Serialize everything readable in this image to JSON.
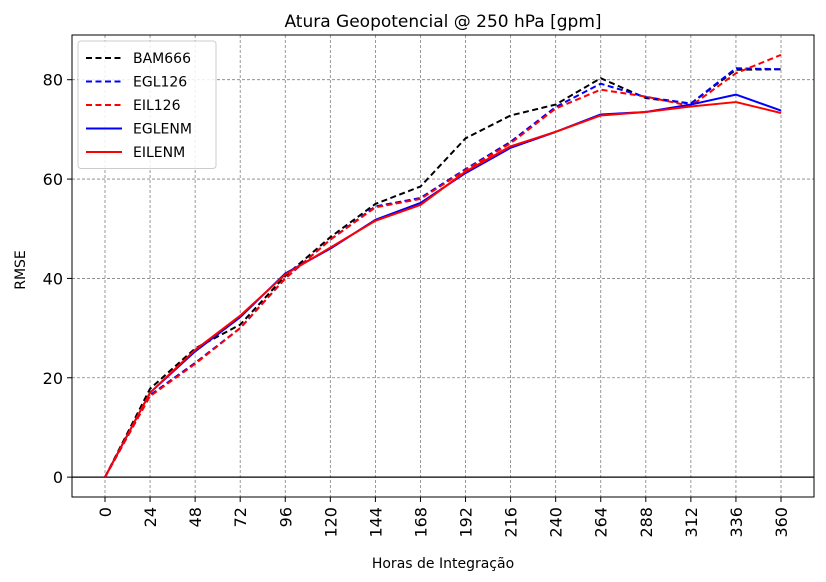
{
  "chart_data": {
    "type": "line",
    "title": "Atura Geopotencial @ 250 hPa [gpm]",
    "xlabel": "Horas de Integração",
    "ylabel": "RMSE",
    "x": [
      0,
      24,
      48,
      72,
      96,
      120,
      144,
      168,
      192,
      216,
      240,
      264,
      288,
      312,
      336,
      360
    ],
    "xticks": [
      "0",
      "24",
      "48",
      "72",
      "96",
      "120",
      "144",
      "168",
      "192",
      "216",
      "240",
      "264",
      "288",
      "312",
      "336",
      "360"
    ],
    "yticks": [
      "0",
      "20",
      "40",
      "60",
      "80"
    ],
    "ylim": [
      -4,
      89
    ],
    "grid": true,
    "legend_position": "top-left",
    "series": [
      {
        "name": "BAM666",
        "color": "#000000",
        "dash": true,
        "values": [
          0,
          17.8,
          25.9,
          30.7,
          40.5,
          48.3,
          55.0,
          58.5,
          68.2,
          72.8,
          75.0,
          80.3,
          76.3,
          75.2,
          82.0,
          82.1
        ]
      },
      {
        "name": "EGL126",
        "color": "#0000ff",
        "dash": true,
        "values": [
          0,
          16.5,
          23.0,
          30.0,
          40.0,
          47.8,
          54.5,
          56.2,
          62.0,
          67.5,
          74.5,
          79.2,
          76.5,
          75.2,
          82.3,
          82.1
        ]
      },
      {
        "name": "EIL126",
        "color": "#ff0000",
        "dash": true,
        "values": [
          0,
          16.3,
          22.8,
          30.0,
          40.0,
          47.8,
          54.3,
          56.0,
          61.8,
          67.2,
          74.2,
          78.0,
          76.6,
          74.7,
          81.3,
          85.0
        ]
      },
      {
        "name": "EGLENM",
        "color": "#0000ff",
        "dash": false,
        "values": [
          0,
          17.0,
          25.3,
          32.2,
          41.0,
          46.0,
          51.8,
          55.2,
          61.2,
          66.3,
          69.5,
          73.0,
          73.5,
          75.0,
          77.0,
          73.8
        ]
      },
      {
        "name": "EILENM",
        "color": "#ff0000",
        "dash": false,
        "values": [
          0,
          17.0,
          25.6,
          32.5,
          40.8,
          46.2,
          51.6,
          54.8,
          61.5,
          66.6,
          69.5,
          72.8,
          73.5,
          74.6,
          75.5,
          73.3
        ]
      }
    ]
  }
}
